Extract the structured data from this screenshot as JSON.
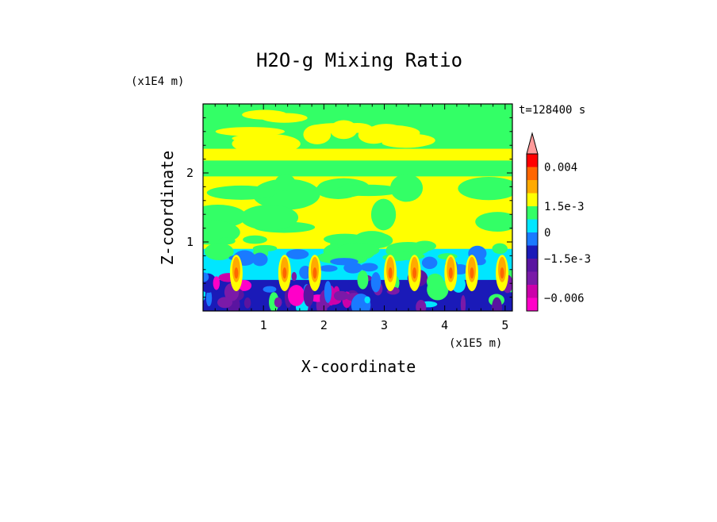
{
  "chart_data": {
    "type": "heatmap",
    "title": "H2O-g Mixing Ratio",
    "time_label": "t=128400 s",
    "xlabel": "X-coordinate",
    "ylabel": "Z-coordinate",
    "x_unit": "(x1E5 m)",
    "y_unit": "(x1E4 m)",
    "xlim": [
      0,
      5.12
    ],
    "ylim": [
      0,
      3.0
    ],
    "x_ticks": [
      {
        "value": 1,
        "label": "1"
      },
      {
        "value": 2,
        "label": "2"
      },
      {
        "value": 3,
        "label": "3"
      },
      {
        "value": 4,
        "label": "4"
      },
      {
        "value": 5,
        "label": "5"
      }
    ],
    "y_ticks": [
      {
        "value": 1,
        "label": "1"
      },
      {
        "value": 2,
        "label": "2"
      }
    ],
    "colorbar": {
      "levels": [
        -0.0075,
        -0.006,
        -0.0045,
        -0.003,
        -0.0015,
        -0.00075,
        0,
        0.00075,
        0.0015,
        0.00225,
        0.003,
        0.004,
        0.005
      ],
      "colors": [
        "#ff00c8",
        "#cc00aa",
        "#7a1aa8",
        "#5a14a0",
        "#1a1ab8",
        "#1a7aff",
        "#00e6ff",
        "#33ff66",
        "#ffff00",
        "#ffaa00",
        "#ff6600",
        "#ff0000",
        "#ff9a9a"
      ],
      "tick_labels": [
        {
          "value": 0.004,
          "label": "0.004"
        },
        {
          "value": 0.0015,
          "label": "1.5e-3"
        },
        {
          "value": 0,
          "label": "0"
        },
        {
          "value": -0.0015,
          "label": "−1.5e-3"
        },
        {
          "value": -0.006,
          "label": "−0.006"
        }
      ],
      "extend": "max"
    }
  }
}
